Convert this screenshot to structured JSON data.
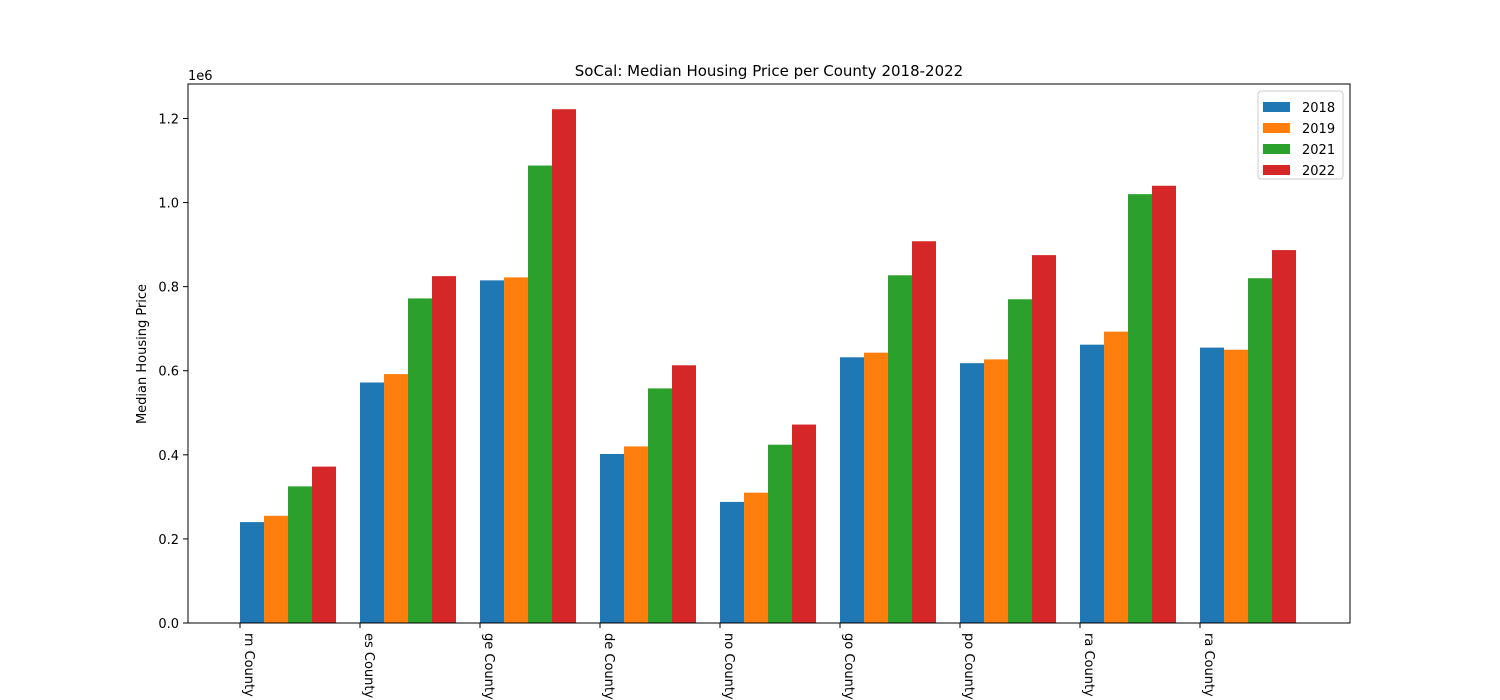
{
  "chart_data": {
    "type": "bar",
    "title": "SoCal: Median Housing Price per County 2018-2022",
    "xlabel": "",
    "ylabel": "Median Housing Price",
    "y_multiplier_label": "1e6",
    "ylim": [
      0,
      1282000
    ],
    "yticks": [
      0,
      200000,
      400000,
      600000,
      800000,
      1000000,
      1200000
    ],
    "ytick_labels": [
      "0.0",
      "0.2",
      "0.4",
      "0.6",
      "0.8",
      "1.0",
      "1.2"
    ],
    "categories": [
      "rn County",
      "es County",
      "ge County",
      "de County",
      "no County",
      "go County",
      "po County",
      "ra County",
      "ra County"
    ],
    "series": [
      {
        "name": "2018",
        "color": "#1f77b4",
        "values": [
          240000,
          572000,
          815000,
          402000,
          288000,
          632000,
          618000,
          662000,
          655000
        ]
      },
      {
        "name": "2019",
        "color": "#ff7f0e",
        "values": [
          255000,
          592000,
          822000,
          420000,
          310000,
          643000,
          627000,
          693000,
          650000
        ]
      },
      {
        "name": "2021",
        "color": "#2ca02c",
        "values": [
          325000,
          772000,
          1088000,
          558000,
          424000,
          827000,
          770000,
          1020000,
          820000
        ]
      },
      {
        "name": "2022",
        "color": "#d62728",
        "values": [
          372000,
          825000,
          1222000,
          613000,
          472000,
          908000,
          875000,
          1040000,
          887000
        ]
      }
    ],
    "grid": false,
    "legend_position": "top-right"
  }
}
